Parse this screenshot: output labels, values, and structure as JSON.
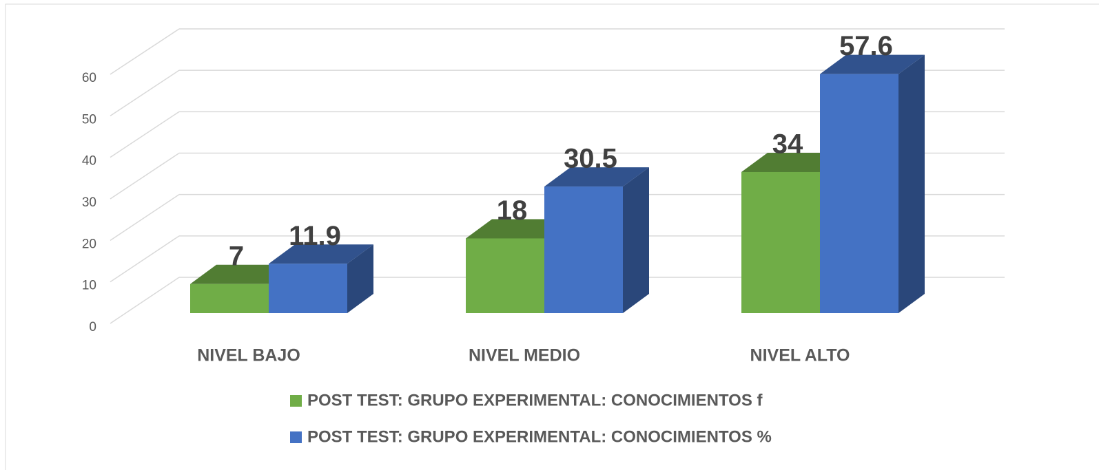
{
  "chart_data": {
    "type": "bar3d",
    "categories": [
      "NIVEL BAJO",
      "NIVEL MEDIO",
      "NIVEL ALTO"
    ],
    "series": [
      {
        "name": "POST TEST: GRUPO EXPERIMENTAL: CONOCIMIENTOS f",
        "color": "#70ad47",
        "values": [
          7,
          18,
          34
        ]
      },
      {
        "name": "POST TEST: GRUPO EXPERIMENTAL: CONOCIMIENTOS %",
        "color": "#4472c4",
        "values": [
          11.9,
          30.5,
          57.6
        ]
      }
    ],
    "ylim": [
      0,
      60
    ],
    "yticks": [
      0,
      10,
      20,
      30,
      40,
      50,
      60
    ],
    "grid": true,
    "legend": "bottom"
  }
}
